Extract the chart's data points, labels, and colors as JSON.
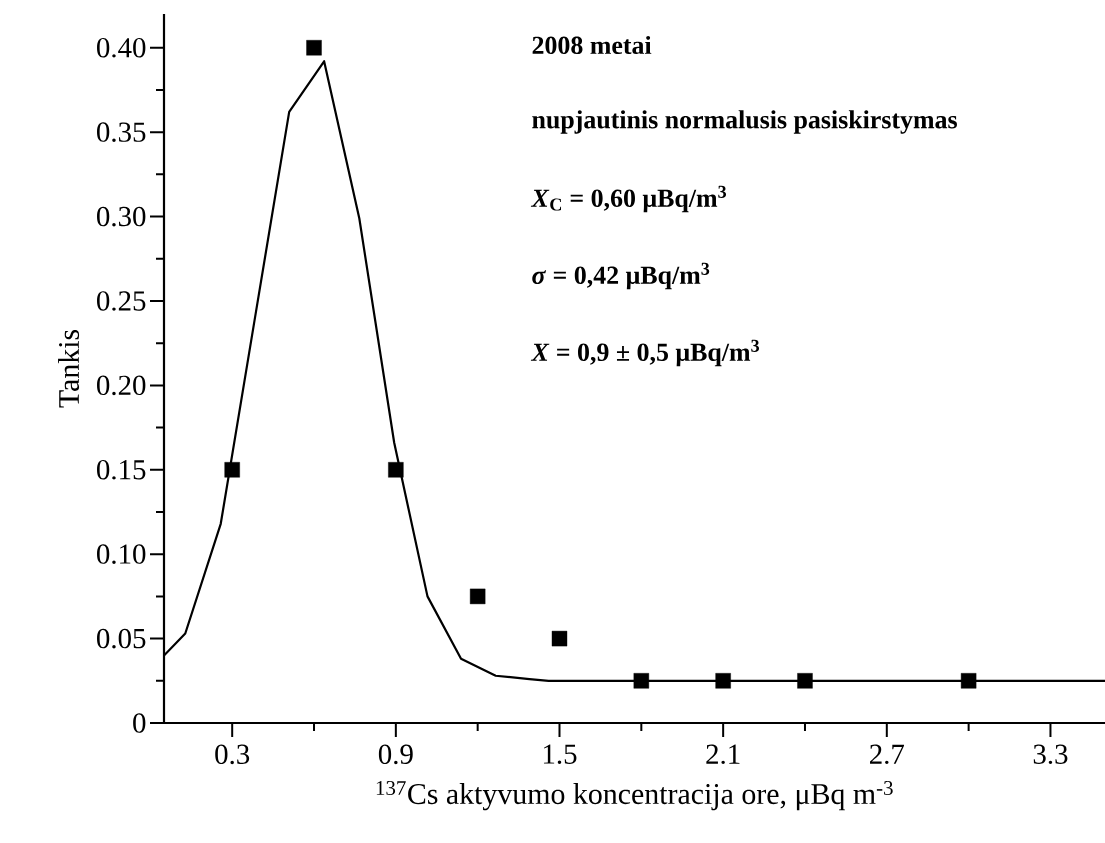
{
  "chart_data": {
    "type": "scatter",
    "xlabel": "$^{137}$Cs aktyvumo koncentracija ore, μBq m$^{-3}$",
    "ylabel": "Tankis",
    "annotations": [
      "2008 metai",
      "nupjautinis normalusis pasiskirstymas",
      "*X*$_{C}$ = 0,60 μBq/m$^{3}$",
      "*σ* = 0,42 μBq/m$^{3}$",
      "*X* = 0,9 ± 0,5 μBq/m$^{3}$"
    ],
    "x": [
      0.3,
      0.6,
      0.9,
      1.2,
      1.5,
      1.8,
      2.1,
      2.4,
      3.0
    ],
    "series": [
      {
        "marker": "square",
        "color": "#000000",
        "values": [
          0.15,
          0.4,
          0.15,
          0.075,
          0.05,
          0.025,
          0.025,
          0.025,
          0.025
        ]
      },
      {
        "type": "line",
        "marker": "none",
        "line_style": "solid",
        "color": "#000000",
        "x": [
          0.05,
          0.128,
          0.258,
          0.509,
          0.637,
          0.766,
          0.894,
          1.016,
          1.139,
          1.266,
          1.39,
          1.46,
          3.5
        ],
        "values": [
          0.04,
          0.053,
          0.118,
          0.362,
          0.392,
          0.299,
          0.166,
          0.075,
          0.038,
          0.028,
          0.026,
          0.025,
          0.025
        ]
      }
    ],
    "xlim": [
      0.05,
      3.5
    ],
    "xticks": [
      0.3,
      {
        "value": 0.6,
        "label": null
      },
      0.9,
      {
        "value": 1.2,
        "label": null
      },
      1.5,
      {
        "value": 1.8,
        "label": null
      },
      2.1,
      {
        "value": 2.4,
        "label": null
      },
      2.7,
      {
        "value": 3.0,
        "label": null
      },
      3.3
    ],
    "ylim": [
      0,
      0.42
    ],
    "yticks": [
      0,
      {
        "value": 0.025,
        "label": null
      },
      {
        "value": 0.05,
        "label": "0.05"
      },
      {
        "value": 0.075,
        "label": null
      },
      {
        "value": 0.1,
        "label": "0.10"
      },
      {
        "value": 0.125,
        "label": null
      },
      {
        "value": 0.15,
        "label": "0.15"
      },
      {
        "value": 0.175,
        "label": null
      },
      {
        "value": 0.2,
        "label": "0.20"
      },
      {
        "value": 0.225,
        "label": null
      },
      {
        "value": 0.25,
        "label": "0.25"
      },
      {
        "value": 0.275,
        "label": null
      },
      {
        "value": 0.3,
        "label": "0.30"
      },
      {
        "value": 0.325,
        "label": null
      },
      {
        "value": 0.35,
        "label": "0.35"
      },
      {
        "value": 0.375,
        "label": null
      },
      {
        "value": 0.4,
        "label": "0.40"
      }
    ]
  }
}
